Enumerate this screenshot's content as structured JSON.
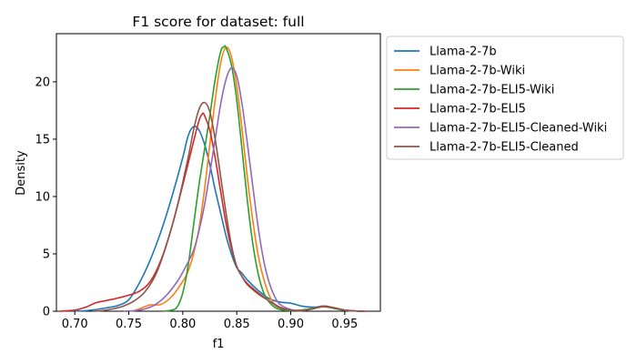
{
  "chart_data": {
    "type": "line",
    "title": "F1 score for dataset: full",
    "xlabel": "f1",
    "ylabel": "Density",
    "xlim": [
      0.683,
      0.983
    ],
    "ylim": [
      0,
      24.2
    ],
    "xticks": [
      0.7,
      0.75,
      0.8,
      0.85,
      0.9,
      0.95
    ],
    "xtick_labels": [
      "0.70",
      "0.75",
      "0.80",
      "0.85",
      "0.90",
      "0.95"
    ],
    "yticks": [
      0,
      5,
      10,
      15,
      20
    ],
    "ytick_labels": [
      "0",
      "5",
      "10",
      "15",
      "20"
    ],
    "grid": false,
    "legend_position": "outside-upper-right",
    "series": [
      {
        "name": "Llama-2-7b",
        "color": "#1f77b4",
        "points": [
          [
            0.697,
            0.0
          ],
          [
            0.71,
            0.05
          ],
          [
            0.72,
            0.15
          ],
          [
            0.73,
            0.3
          ],
          [
            0.74,
            0.5
          ],
          [
            0.75,
            1.0
          ],
          [
            0.76,
            2.5
          ],
          [
            0.77,
            4.5
          ],
          [
            0.78,
            7.0
          ],
          [
            0.79,
            10.0
          ],
          [
            0.8,
            13.4
          ],
          [
            0.805,
            15.3
          ],
          [
            0.81,
            16.1
          ],
          [
            0.815,
            15.8
          ],
          [
            0.82,
            14.6
          ],
          [
            0.825,
            12.8
          ],
          [
            0.83,
            10.6
          ],
          [
            0.835,
            8.6
          ],
          [
            0.84,
            6.6
          ],
          [
            0.845,
            5.0
          ],
          [
            0.85,
            3.8
          ],
          [
            0.855,
            3.3
          ],
          [
            0.86,
            2.7
          ],
          [
            0.87,
            1.8
          ],
          [
            0.88,
            1.1
          ],
          [
            0.89,
            0.8
          ],
          [
            0.9,
            0.7
          ],
          [
            0.91,
            0.45
          ],
          [
            0.92,
            0.35
          ],
          [
            0.93,
            0.4
          ],
          [
            0.94,
            0.25
          ],
          [
            0.95,
            0.1
          ],
          [
            0.96,
            0.03
          ],
          [
            0.967,
            0.0
          ]
        ]
      },
      {
        "name": "Llama-2-7b-Wiki",
        "color": "#ff7f0e",
        "points": [
          [
            0.746,
            0.0
          ],
          [
            0.755,
            0.05
          ],
          [
            0.765,
            0.4
          ],
          [
            0.77,
            0.55
          ],
          [
            0.78,
            0.6
          ],
          [
            0.79,
            1.3
          ],
          [
            0.8,
            2.6
          ],
          [
            0.805,
            3.5
          ],
          [
            0.81,
            5.0
          ],
          [
            0.815,
            7.2
          ],
          [
            0.82,
            10.5
          ],
          [
            0.825,
            14.5
          ],
          [
            0.83,
            18.4
          ],
          [
            0.835,
            21.6
          ],
          [
            0.84,
            23.0
          ],
          [
            0.845,
            22.2
          ],
          [
            0.85,
            19.6
          ],
          [
            0.855,
            15.8
          ],
          [
            0.86,
            11.5
          ],
          [
            0.865,
            7.8
          ],
          [
            0.87,
            4.8
          ],
          [
            0.875,
            2.8
          ],
          [
            0.88,
            1.4
          ],
          [
            0.885,
            0.6
          ],
          [
            0.89,
            0.3
          ],
          [
            0.9,
            0.12
          ],
          [
            0.91,
            0.1
          ],
          [
            0.92,
            0.2
          ],
          [
            0.93,
            0.4
          ],
          [
            0.94,
            0.25
          ],
          [
            0.95,
            0.08
          ],
          [
            0.96,
            0.02
          ],
          [
            0.967,
            0.0
          ]
        ]
      },
      {
        "name": "Llama-2-7b-ELI5-Wiki",
        "color": "#2ca02c",
        "points": [
          [
            0.782,
            0.0
          ],
          [
            0.79,
            0.1
          ],
          [
            0.795,
            0.4
          ],
          [
            0.8,
            1.6
          ],
          [
            0.805,
            4.0
          ],
          [
            0.81,
            7.5
          ],
          [
            0.815,
            11.0
          ],
          [
            0.82,
            14.0
          ],
          [
            0.825,
            17.0
          ],
          [
            0.83,
            20.2
          ],
          [
            0.835,
            22.6
          ],
          [
            0.838,
            23.05
          ],
          [
            0.84,
            23.0
          ],
          [
            0.845,
            21.5
          ],
          [
            0.85,
            18.4
          ],
          [
            0.855,
            14.0
          ],
          [
            0.86,
            9.5
          ],
          [
            0.865,
            5.8
          ],
          [
            0.87,
            3.2
          ],
          [
            0.875,
            1.6
          ],
          [
            0.88,
            0.8
          ],
          [
            0.885,
            0.35
          ],
          [
            0.89,
            0.15
          ],
          [
            0.9,
            0.05
          ],
          [
            0.91,
            0.1
          ],
          [
            0.92,
            0.25
          ],
          [
            0.93,
            0.45
          ],
          [
            0.94,
            0.25
          ],
          [
            0.95,
            0.08
          ],
          [
            0.96,
            0.02
          ],
          [
            0.967,
            0.0
          ]
        ]
      },
      {
        "name": "Llama-2-7b-ELI5",
        "color": "#d62728",
        "points": [
          [
            0.686,
            0.0
          ],
          [
            0.7,
            0.1
          ],
          [
            0.71,
            0.35
          ],
          [
            0.72,
            0.75
          ],
          [
            0.73,
            0.95
          ],
          [
            0.74,
            1.15
          ],
          [
            0.75,
            1.4
          ],
          [
            0.76,
            1.75
          ],
          [
            0.77,
            2.6
          ],
          [
            0.78,
            4.5
          ],
          [
            0.79,
            7.4
          ],
          [
            0.8,
            11.0
          ],
          [
            0.81,
            14.8
          ],
          [
            0.815,
            16.6
          ],
          [
            0.818,
            17.2
          ],
          [
            0.82,
            17.1
          ],
          [
            0.825,
            15.8
          ],
          [
            0.83,
            13.4
          ],
          [
            0.835,
            10.5
          ],
          [
            0.84,
            7.7
          ],
          [
            0.845,
            5.5
          ],
          [
            0.85,
            3.9
          ],
          [
            0.855,
            3.0
          ],
          [
            0.86,
            2.3
          ],
          [
            0.87,
            1.5
          ],
          [
            0.88,
            0.9
          ],
          [
            0.89,
            0.35
          ],
          [
            0.9,
            0.1
          ],
          [
            0.91,
            0.05
          ],
          [
            0.92,
            0.2
          ],
          [
            0.93,
            0.4
          ],
          [
            0.94,
            0.3
          ],
          [
            0.95,
            0.1
          ],
          [
            0.96,
            0.02
          ],
          [
            0.97,
            0.0
          ]
        ]
      },
      {
        "name": "Llama-2-7b-ELI5-Cleaned-Wiki",
        "color": "#9467bd",
        "points": [
          [
            0.746,
            0.0
          ],
          [
            0.755,
            0.05
          ],
          [
            0.765,
            0.2
          ],
          [
            0.775,
            0.6
          ],
          [
            0.785,
            1.4
          ],
          [
            0.795,
            2.6
          ],
          [
            0.8,
            3.4
          ],
          [
            0.805,
            4.3
          ],
          [
            0.81,
            5.3
          ],
          [
            0.815,
            7.0
          ],
          [
            0.82,
            9.2
          ],
          [
            0.825,
            12.0
          ],
          [
            0.83,
            15.0
          ],
          [
            0.835,
            18.0
          ],
          [
            0.84,
            20.2
          ],
          [
            0.845,
            21.2
          ],
          [
            0.85,
            20.5
          ],
          [
            0.855,
            18.0
          ],
          [
            0.86,
            14.5
          ],
          [
            0.865,
            10.8
          ],
          [
            0.87,
            7.2
          ],
          [
            0.875,
            4.4
          ],
          [
            0.88,
            2.5
          ],
          [
            0.885,
            1.3
          ],
          [
            0.89,
            0.6
          ],
          [
            0.9,
            0.15
          ],
          [
            0.91,
            0.05
          ],
          [
            0.92,
            0.2
          ],
          [
            0.93,
            0.45
          ],
          [
            0.94,
            0.3
          ],
          [
            0.95,
            0.1
          ],
          [
            0.96,
            0.02
          ],
          [
            0.967,
            0.0
          ]
        ]
      },
      {
        "name": "Llama-2-7b-ELI5-Cleaned",
        "color": "#8c564b",
        "points": [
          [
            0.717,
            0.0
          ],
          [
            0.725,
            0.05
          ],
          [
            0.735,
            0.2
          ],
          [
            0.745,
            0.45
          ],
          [
            0.755,
            0.9
          ],
          [
            0.765,
            1.7
          ],
          [
            0.775,
            3.2
          ],
          [
            0.785,
            5.8
          ],
          [
            0.795,
            9.2
          ],
          [
            0.805,
            13.4
          ],
          [
            0.81,
            15.8
          ],
          [
            0.815,
            17.6
          ],
          [
            0.82,
            18.2
          ],
          [
            0.825,
            17.4
          ],
          [
            0.83,
            15.0
          ],
          [
            0.835,
            11.8
          ],
          [
            0.84,
            8.6
          ],
          [
            0.845,
            5.8
          ],
          [
            0.85,
            3.9
          ],
          [
            0.855,
            3.0
          ],
          [
            0.86,
            2.4
          ],
          [
            0.87,
            1.6
          ],
          [
            0.88,
            0.9
          ],
          [
            0.89,
            0.3
          ],
          [
            0.9,
            0.1
          ],
          [
            0.91,
            0.05
          ],
          [
            0.92,
            0.2
          ],
          [
            0.93,
            0.45
          ],
          [
            0.94,
            0.3
          ],
          [
            0.95,
            0.1
          ],
          [
            0.96,
            0.02
          ],
          [
            0.967,
            0.0
          ]
        ]
      }
    ]
  }
}
